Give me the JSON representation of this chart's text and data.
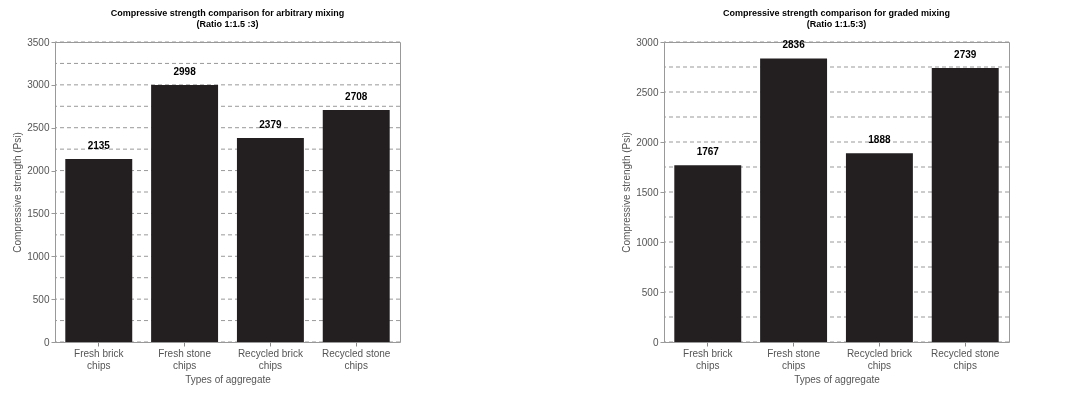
{
  "chart_data": [
    {
      "type": "bar",
      "title": "Compressive strength comparison for arbitrary mixing",
      "subtitle": "(Ratio 1:1.5 :3)",
      "xlabel": "Types of aggregate",
      "ylabel": "Compressive strength (Psi)",
      "categories": [
        "Fresh brick chips",
        "Fresh stone chips",
        "Recycled brick chips",
        "Recycled stone chips"
      ],
      "values": [
        2135,
        2998,
        2379,
        2708
      ],
      "color": "#231f20",
      "data_labels": true,
      "ylim": [
        0,
        3500
      ],
      "yticks": [
        0,
        {
          "value": 250,
          "label": null
        },
        500,
        {
          "value": 750,
          "label": null
        },
        1000,
        {
          "value": 1250,
          "label": null
        },
        1500,
        {
          "value": 1750,
          "label": null
        },
        2000,
        {
          "value": 2250,
          "label": null
        },
        2500,
        {
          "value": 2750,
          "label": null
        },
        3000,
        {
          "value": 3250,
          "label": null
        },
        3500
      ],
      "grid": "y",
      "line_style": "dashed"
    },
    {
      "type": "bar",
      "title": "Compressive strength comparison for graded mixing",
      "subtitle": "(Ratio 1:1.5:3)",
      "xlabel": "Types of aggregate",
      "ylabel": "Compressive strength (Psi)",
      "categories": [
        "Fresh brick chips",
        "Fresh stone chips",
        "Recycled brick chips",
        "Recycled stone chips"
      ],
      "values": [
        1767,
        2836,
        1888,
        2739
      ],
      "color": "#231f20",
      "data_labels": true,
      "ylim": [
        0,
        3000
      ],
      "yticks": [
        0,
        {
          "value": 250,
          "label": null
        },
        500,
        {
          "value": 750,
          "label": null
        },
        1000,
        {
          "value": 1250,
          "label": null
        },
        1500,
        {
          "value": 1750,
          "label": null
        },
        2000,
        {
          "value": 2250,
          "label": null
        },
        2500,
        {
          "value": 2750,
          "label": null
        },
        3000
      ],
      "grid": "y",
      "line_style": "dashed"
    }
  ]
}
